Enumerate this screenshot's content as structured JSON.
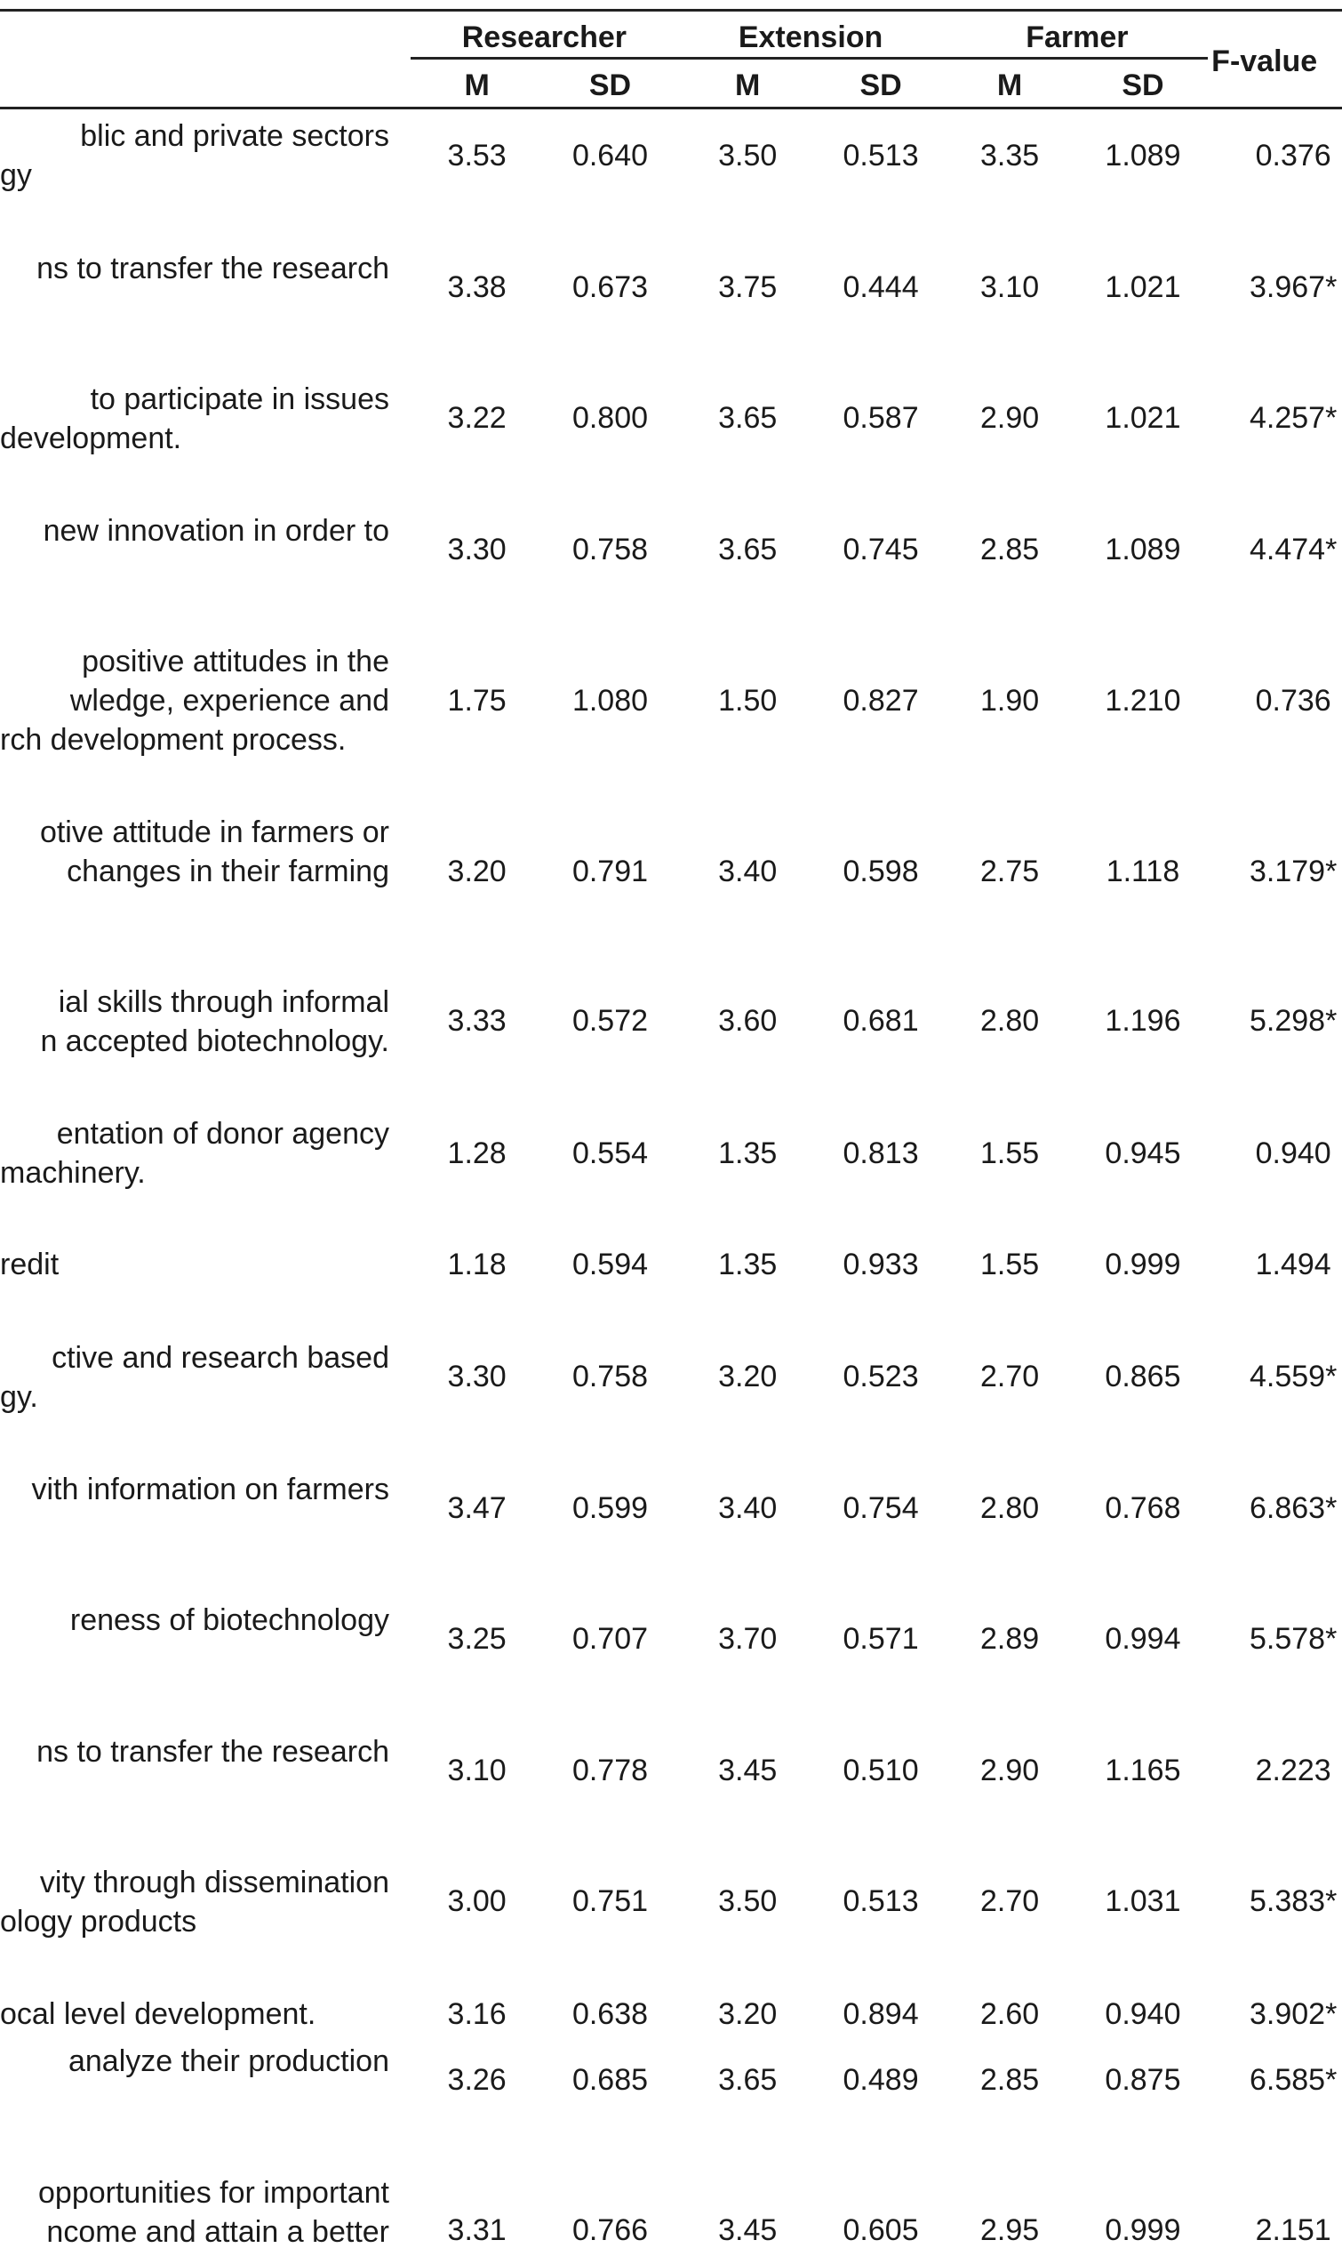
{
  "table": {
    "group_headers": [
      "Researcher",
      "Extension",
      "Farmer"
    ],
    "f_header": "F-value",
    "sub_headers": [
      "M",
      "SD",
      "M",
      "SD",
      "M",
      "SD"
    ],
    "rows": [
      {
        "statement": [
          "blic and private sectors",
          "gy"
        ],
        "values": [
          "3.53",
          "0.640",
          "3.50",
          "0.513",
          "3.35",
          "1.089",
          "0.376"
        ]
      },
      {
        "statement": [
          "ns to transfer the research"
        ],
        "values": [
          "3.38",
          "0.673",
          "3.75",
          "0.444",
          "3.10",
          "1.021",
          "3.967*"
        ]
      },
      {
        "statement": [
          "to participate in issues",
          "development."
        ],
        "values": [
          "3.22",
          "0.800",
          "3.65",
          "0.587",
          "2.90",
          "1.021",
          "4.257*"
        ]
      },
      {
        "statement": [
          "new innovation in order to"
        ],
        "values": [
          "3.30",
          "0.758",
          "3.65",
          "0.745",
          "2.85",
          "1.089",
          "4.474*"
        ]
      },
      {
        "statement": [
          "positive attitudes in the",
          "wledge, experience and",
          "rch development process."
        ],
        "values": [
          "1.75",
          "1.080",
          "1.50",
          "0.827",
          "1.90",
          "1.210",
          "0.736"
        ]
      },
      {
        "statement": [
          "otive attitude in farmers or",
          "changes in their farming"
        ],
        "values": [
          "3.20",
          "0.791",
          "3.40",
          "0.598",
          "2.75",
          "1.118",
          "3.179*"
        ]
      },
      {
        "statement": [
          "ial skills through informal",
          "n accepted biotechnology."
        ],
        "values": [
          "3.33",
          "0.572",
          "3.60",
          "0.681",
          "2.80",
          "1.196",
          "5.298*"
        ]
      },
      {
        "statement": [
          "entation of donor agency",
          "machinery."
        ],
        "values": [
          "1.28",
          "0.554",
          "1.35",
          "0.813",
          "1.55",
          "0.945",
          "0.940"
        ]
      },
      {
        "statement": [
          "redit"
        ],
        "values": [
          "1.18",
          "0.594",
          "1.35",
          "0.933",
          "1.55",
          "0.999",
          "1.494"
        ]
      },
      {
        "statement": [
          "ctive and research based",
          "gy."
        ],
        "values": [
          "3.30",
          "0.758",
          "3.20",
          "0.523",
          "2.70",
          "0.865",
          "4.559*"
        ]
      },
      {
        "statement": [
          "vith information on farmers"
        ],
        "values": [
          "3.47",
          "0.599",
          "3.40",
          "0.754",
          "2.80",
          "0.768",
          "6.863*"
        ]
      },
      {
        "statement": [
          "reness of biotechnology"
        ],
        "values": [
          "3.25",
          "0.707",
          "3.70",
          "0.571",
          "2.89",
          "0.994",
          "5.578*"
        ]
      },
      {
        "statement": [
          "ns to transfer the research"
        ],
        "values": [
          "3.10",
          "0.778",
          "3.45",
          "0.510",
          "2.90",
          "1.165",
          "2.223"
        ]
      },
      {
        "statement": [
          "vity through dissemination",
          "ology products"
        ],
        "values": [
          "3.00",
          "0.751",
          "3.50",
          "0.513",
          "2.70",
          "1.031",
          "5.383*"
        ]
      },
      {
        "statement": [
          "ocal level development."
        ],
        "values": [
          "3.16",
          "0.638",
          "3.20",
          "0.894",
          "2.60",
          "0.940",
          "3.902*"
        ]
      },
      {
        "statement": [
          "analyze their production"
        ],
        "values": [
          "3.26",
          "0.685",
          "3.65",
          "0.489",
          "2.85",
          "0.875",
          "6.585*"
        ]
      },
      {
        "statement": [
          "opportunities for important",
          "ncome and attain a better"
        ],
        "values": [
          "3.31",
          "0.766",
          "3.45",
          "0.605",
          "2.95",
          "0.999",
          "2.151"
        ]
      }
    ]
  }
}
